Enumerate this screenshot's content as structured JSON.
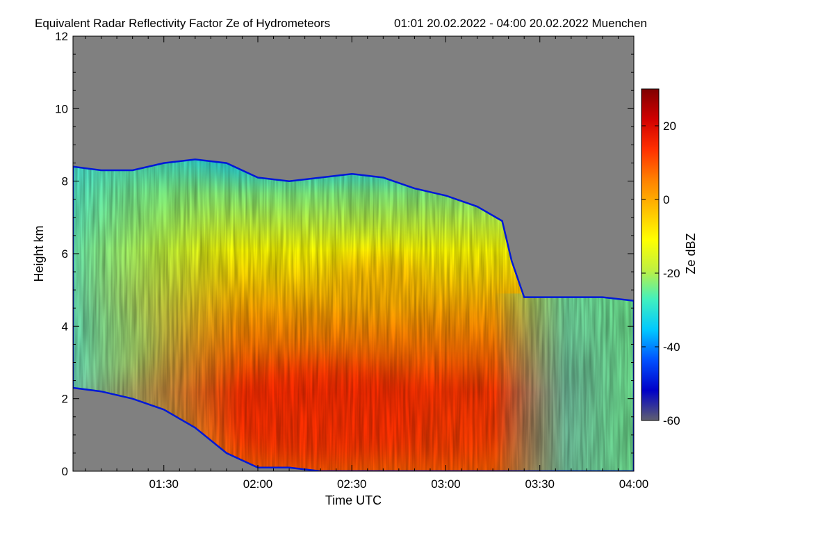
{
  "chart_data": {
    "type": "heatmap",
    "title": "Equivalent Radar Reflectivity Factor Ze of Hydrometeors",
    "subtitle": "01:01 20.02.2022 - 04:00 20.02.2022 Muenchen",
    "xlabel": "Time UTC",
    "ylabel": "Height km",
    "colorbar_label": "Ze dBZ",
    "x_range_minutes": [
      61,
      240
    ],
    "ylim": [
      0,
      12
    ],
    "x_ticks": [
      {
        "minutes": 90,
        "label": "01:30"
      },
      {
        "minutes": 120,
        "label": "02:00"
      },
      {
        "minutes": 150,
        "label": "02:30"
      },
      {
        "minutes": 180,
        "label": "03:00"
      },
      {
        "minutes": 210,
        "label": "03:30"
      },
      {
        "minutes": 240,
        "label": "04:00"
      }
    ],
    "y_ticks": [
      {
        "value": 0,
        "label": "0"
      },
      {
        "value": 2,
        "label": "2"
      },
      {
        "value": 4,
        "label": "4"
      },
      {
        "value": 6,
        "label": "6"
      },
      {
        "value": 8,
        "label": "8"
      },
      {
        "value": 10,
        "label": "10"
      },
      {
        "value": 12,
        "label": "12"
      }
    ],
    "colorbar_range": [
      -60,
      30
    ],
    "colorbar_ticks": [
      {
        "value": 20,
        "label": "20"
      },
      {
        "value": 0,
        "label": "0"
      },
      {
        "value": -20,
        "label": "-20"
      },
      {
        "value": -40,
        "label": "-40"
      },
      {
        "value": -60,
        "label": "-60"
      }
    ],
    "no_data_color": "#808080",
    "colormap": [
      "#606070",
      "#0000c8",
      "#0050ff",
      "#00c8ff",
      "#40f0c0",
      "#c0f040",
      "#ffff00",
      "#ffc000",
      "#ff8000",
      "#ff3000",
      "#d00000",
      "#800000"
    ],
    "cloud_profile": [
      {
        "t": 61,
        "top": 8.4,
        "base": 2.3
      },
      {
        "t": 70,
        "top": 8.3,
        "base": 2.2
      },
      {
        "t": 80,
        "top": 8.3,
        "base": 2.0
      },
      {
        "t": 90,
        "top": 8.5,
        "base": 1.7
      },
      {
        "t": 100,
        "top": 8.6,
        "base": 1.2
      },
      {
        "t": 110,
        "top": 8.5,
        "base": 0.5
      },
      {
        "t": 120,
        "top": 8.1,
        "base": 0.1
      },
      {
        "t": 130,
        "top": 8.0,
        "base": 0.1
      },
      {
        "t": 140,
        "top": 8.1,
        "base": 0.0
      },
      {
        "t": 150,
        "top": 8.2,
        "base": 0.0
      },
      {
        "t": 160,
        "top": 8.1,
        "base": 0.0
      },
      {
        "t": 170,
        "top": 7.8,
        "base": 0.0
      },
      {
        "t": 180,
        "top": 7.6,
        "base": 0.0
      },
      {
        "t": 190,
        "top": 7.3,
        "base": 0.0
      },
      {
        "t": 198,
        "top": 6.9,
        "base": 0.0
      },
      {
        "t": 201,
        "top": 5.8,
        "base": 0.0
      },
      {
        "t": 205,
        "top": 4.8,
        "base": 0.0
      },
      {
        "t": 215,
        "top": 4.8,
        "base": 0.0
      },
      {
        "t": 230,
        "top": 4.8,
        "base": 0.0
      },
      {
        "t": 240,
        "top": 4.7,
        "base": 0.0
      }
    ]
  }
}
